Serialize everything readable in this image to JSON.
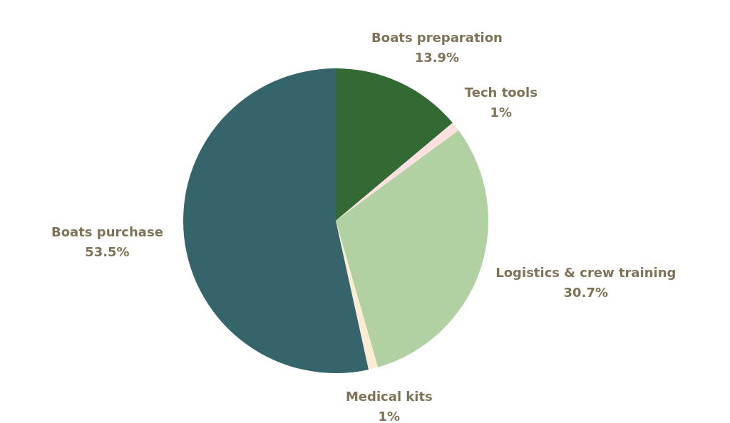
{
  "chart_data": {
    "type": "pie",
    "categories": [
      "Boats preparation",
      "Tech tools",
      "Logistics & crew training",
      "Medical kits",
      "Boats purchase"
    ],
    "values": [
      13.9,
      1,
      30.7,
      1,
      53.5
    ],
    "value_labels": [
      "13.9%",
      "1%",
      "30.7%",
      "1%",
      "53.5%"
    ],
    "colors": [
      "#336933",
      "#fde0df",
      "#b1d1a3",
      "#feecd2",
      "#35646a"
    ],
    "legend": false
  }
}
